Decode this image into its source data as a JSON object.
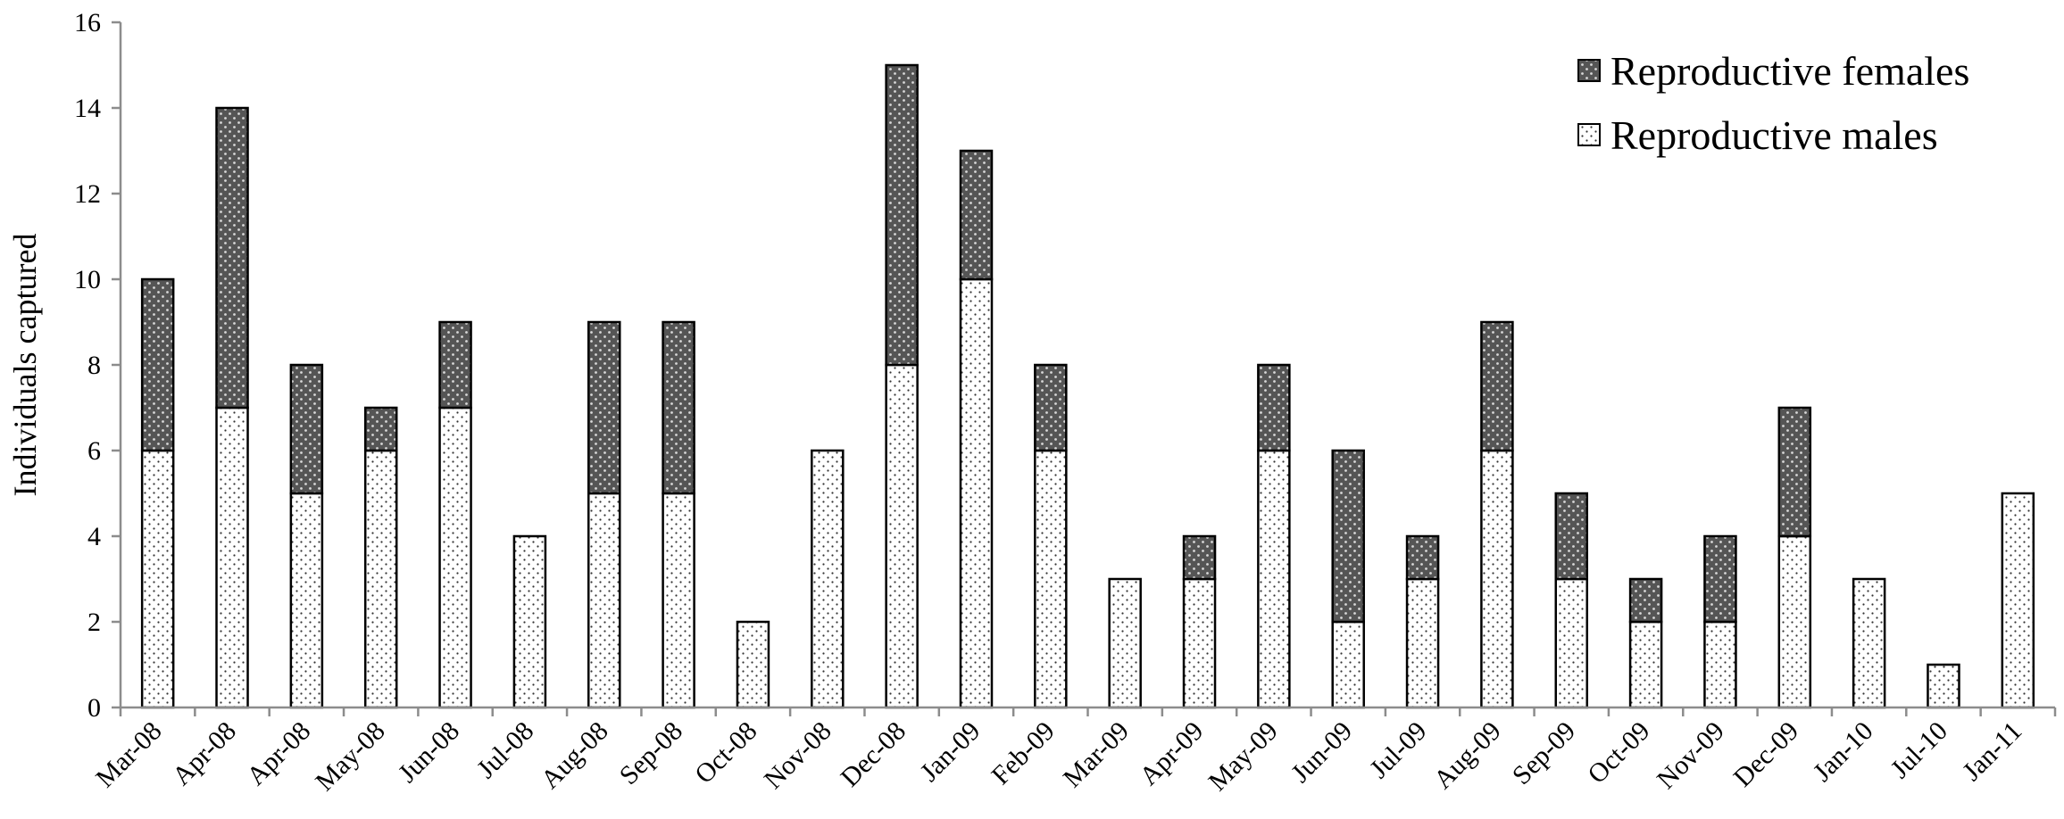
{
  "chart_data": {
    "type": "bar",
    "stacked": true,
    "title": "",
    "xlabel": "",
    "ylabel": "Individuals captured",
    "ylim": [
      0,
      16
    ],
    "yticks": [
      0,
      2,
      4,
      6,
      8,
      10,
      12,
      14,
      16
    ],
    "grid": false,
    "legend_position": "top-right",
    "categories": [
      "Mar-08",
      "Apr-08",
      "Apr-08",
      "May-08",
      "Jun-08",
      "Jul-08",
      "Aug-08",
      "Sep-08",
      "Oct-08",
      "Nov-08",
      "Dec-08",
      "Jan-09",
      "Feb-09",
      "Mar-09",
      "Apr-09",
      "May-09",
      "Jun-09",
      "Jul-09",
      "Aug-09",
      "Sep-09",
      "Oct-09",
      "Nov-09",
      "Dec-09",
      "Jan-10",
      "Jul-10",
      "Jan-11"
    ],
    "series": [
      {
        "name": "Reproductive males",
        "pattern": "light-dotted",
        "color": "#ffffff",
        "values": [
          6,
          7,
          5,
          6,
          7,
          4,
          5,
          5,
          2,
          6,
          8,
          10,
          6,
          3,
          3,
          6,
          2,
          3,
          6,
          3,
          2,
          2,
          4,
          3,
          1,
          5
        ]
      },
      {
        "name": "Reproductive females",
        "pattern": "dark-dotted",
        "color": "#5a5a5a",
        "values": [
          4,
          7,
          3,
          1,
          2,
          0,
          4,
          4,
          0,
          0,
          7,
          3,
          2,
          0,
          1,
          2,
          4,
          1,
          3,
          2,
          1,
          2,
          3,
          0,
          0,
          0
        ]
      }
    ]
  }
}
